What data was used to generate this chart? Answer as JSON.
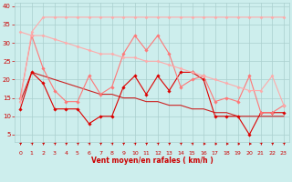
{
  "x": [
    0,
    1,
    2,
    3,
    4,
    5,
    6,
    7,
    8,
    9,
    10,
    11,
    12,
    13,
    14,
    15,
    16,
    17,
    18,
    19,
    20,
    21,
    22,
    23
  ],
  "series": [
    {
      "color": "#dd0000",
      "lw": 0.8,
      "marker": "D",
      "ms": 1.8,
      "y": [
        12,
        22,
        19,
        12,
        12,
        12,
        8,
        10,
        10,
        18,
        21,
        16,
        21,
        17,
        22,
        22,
        20,
        10,
        10,
        10,
        5,
        11,
        11,
        11
      ]
    },
    {
      "color": "#ff7777",
      "lw": 0.8,
      "marker": "D",
      "ms": 1.8,
      "y": [
        15,
        32,
        23,
        17,
        14,
        14,
        21,
        16,
        18,
        27,
        32,
        28,
        32,
        27,
        18,
        20,
        21,
        14,
        15,
        14,
        21,
        11,
        11,
        13
      ]
    },
    {
      "color": "#ffaaaa",
      "lw": 0.8,
      "marker": "D",
      "ms": 1.6,
      "y": [
        14,
        33,
        37,
        37,
        37,
        37,
        37,
        37,
        37,
        37,
        37,
        37,
        37,
        37,
        37,
        37,
        37,
        37,
        37,
        37,
        37,
        37,
        37,
        37
      ]
    },
    {
      "color": "#ffaaaa",
      "lw": 0.8,
      "marker": "D",
      "ms": 1.6,
      "y": [
        33,
        32,
        32,
        31,
        30,
        29,
        28,
        27,
        27,
        26,
        26,
        25,
        25,
        24,
        23,
        22,
        21,
        20,
        19,
        18,
        17,
        17,
        21,
        13
      ]
    },
    {
      "color": "#cc2222",
      "lw": 0.8,
      "marker": null,
      "ms": 0,
      "y": [
        14,
        22,
        21,
        20,
        19,
        18,
        17,
        16,
        16,
        15,
        15,
        14,
        14,
        13,
        13,
        12,
        12,
        11,
        11,
        10,
        10,
        10,
        10,
        10
      ]
    }
  ],
  "xlabel": "Vent moyen/en rafales ( km/h )",
  "xlim": [
    -0.5,
    23.5
  ],
  "ylim": [
    3,
    41
  ],
  "yticks": [
    5,
    10,
    15,
    20,
    25,
    30,
    35,
    40
  ],
  "xticks": [
    0,
    1,
    2,
    3,
    4,
    5,
    6,
    7,
    8,
    9,
    10,
    11,
    12,
    13,
    14,
    15,
    16,
    17,
    18,
    19,
    20,
    21,
    22,
    23
  ],
  "bg_color": "#cdeeed",
  "grid_color": "#aacfce",
  "tick_color": "#cc0000",
  "label_color": "#cc0000",
  "arrow_angles_deg": [
    45,
    45,
    45,
    45,
    45,
    45,
    45,
    45,
    45,
    45,
    45,
    45,
    45,
    45,
    45,
    45,
    0,
    0,
    0,
    0,
    0,
    45,
    45,
    45
  ]
}
